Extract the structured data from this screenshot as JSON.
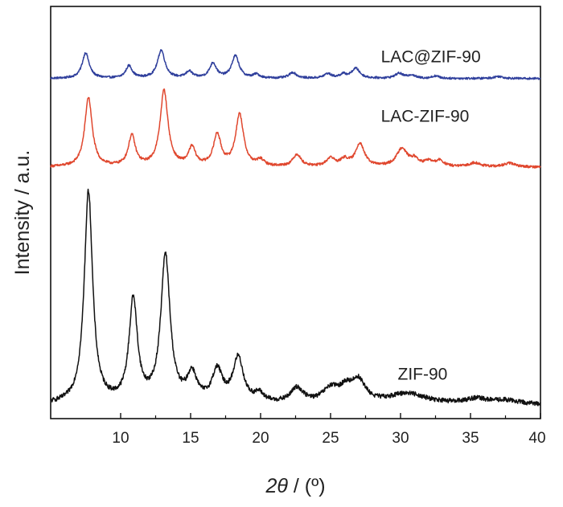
{
  "chart_data": {
    "type": "line",
    "xlabel_italic": "2θ",
    "xlabel_rest": " / (º)",
    "ylabel": "Intensity / a.u.",
    "xlim": [
      5,
      40
    ],
    "ylim": [
      0,
      100
    ],
    "x_ticks": [
      "10",
      "15",
      "20",
      "25",
      "30",
      "35",
      "40"
    ],
    "x_tick_values": [
      10,
      15,
      20,
      25,
      30,
      35,
      40
    ],
    "y_ticks_labeled": false,
    "grid": false,
    "series": [
      {
        "name": "LAC@ZIF-90",
        "color": "#2f3f9c",
        "baseline": 82.5,
        "noise": 0.25,
        "label_x": 28.6,
        "label_y": 86.5,
        "peaks": [
          {
            "x": 7.5,
            "h": 6.2,
            "w": 0.3
          },
          {
            "x": 10.6,
            "h": 3.0,
            "w": 0.28
          },
          {
            "x": 12.9,
            "h": 6.8,
            "w": 0.32
          },
          {
            "x": 14.9,
            "h": 1.6,
            "w": 0.28
          },
          {
            "x": 16.6,
            "h": 3.6,
            "w": 0.3
          },
          {
            "x": 18.2,
            "h": 5.4,
            "w": 0.32
          },
          {
            "x": 19.7,
            "h": 0.9,
            "w": 0.28
          },
          {
            "x": 22.3,
            "h": 1.4,
            "w": 0.32
          },
          {
            "x": 24.8,
            "h": 1.1,
            "w": 0.32
          },
          {
            "x": 25.9,
            "h": 0.9,
            "w": 0.3
          },
          {
            "x": 26.8,
            "h": 2.4,
            "w": 0.35
          },
          {
            "x": 29.9,
            "h": 1.2,
            "w": 0.35
          },
          {
            "x": 30.8,
            "h": 0.8,
            "w": 0.3
          },
          {
            "x": 32.5,
            "h": 0.6,
            "w": 0.3
          },
          {
            "x": 37.0,
            "h": 0.5,
            "w": 0.4
          }
        ]
      },
      {
        "name": "LAC-ZIF-90",
        "color": "#e0472e",
        "baseline": 61.0,
        "noise": 0.3,
        "label_x": 28.6,
        "label_y": 72.0,
        "peaks": [
          {
            "x": 7.7,
            "h": 16.8,
            "w": 0.32
          },
          {
            "x": 10.8,
            "h": 7.4,
            "w": 0.3
          },
          {
            "x": 13.1,
            "h": 18.4,
            "w": 0.34
          },
          {
            "x": 15.1,
            "h": 4.4,
            "w": 0.3
          },
          {
            "x": 16.9,
            "h": 7.6,
            "w": 0.32
          },
          {
            "x": 18.5,
            "h": 12.6,
            "w": 0.34
          },
          {
            "x": 20.0,
            "h": 1.4,
            "w": 0.3
          },
          {
            "x": 22.6,
            "h": 2.9,
            "w": 0.35
          },
          {
            "x": 25.0,
            "h": 2.0,
            "w": 0.35
          },
          {
            "x": 26.0,
            "h": 1.6,
            "w": 0.35
          },
          {
            "x": 27.1,
            "h": 5.6,
            "w": 0.38
          },
          {
            "x": 30.1,
            "h": 4.4,
            "w": 0.45
          },
          {
            "x": 31.0,
            "h": 1.6,
            "w": 0.35
          },
          {
            "x": 32.0,
            "h": 1.2,
            "w": 0.35
          },
          {
            "x": 32.8,
            "h": 1.4,
            "w": 0.35
          },
          {
            "x": 35.3,
            "h": 1.0,
            "w": 0.45
          },
          {
            "x": 37.8,
            "h": 0.9,
            "w": 0.5
          }
        ]
      },
      {
        "name": "ZIF-90",
        "color": "#111111",
        "baseline": 3.3,
        "noise": 0.55,
        "label_x": 29.8,
        "label_y": 9.5,
        "peaks": [
          {
            "x": 7.7,
            "h": 51.5,
            "w": 0.36
          },
          {
            "x": 10.9,
            "h": 24.8,
            "w": 0.36
          },
          {
            "x": 13.2,
            "h": 35.6,
            "w": 0.4
          },
          {
            "x": 15.1,
            "h": 6.6,
            "w": 0.42
          },
          {
            "x": 16.9,
            "h": 7.6,
            "w": 0.45
          },
          {
            "x": 18.4,
            "h": 10.8,
            "w": 0.45
          },
          {
            "x": 19.9,
            "h": 2.0,
            "w": 0.4
          },
          {
            "x": 22.6,
            "h": 3.6,
            "w": 0.55
          },
          {
            "x": 25.0,
            "h": 3.2,
            "w": 0.7
          },
          {
            "x": 26.1,
            "h": 3.0,
            "w": 0.6
          },
          {
            "x": 27.0,
            "h": 5.0,
            "w": 0.6
          },
          {
            "x": 30.5,
            "h": 2.6,
            "w": 1.6
          },
          {
            "x": 35.4,
            "h": 1.2,
            "w": 1.0
          },
          {
            "x": 37.5,
            "h": 0.9,
            "w": 1.2
          }
        ]
      }
    ]
  }
}
